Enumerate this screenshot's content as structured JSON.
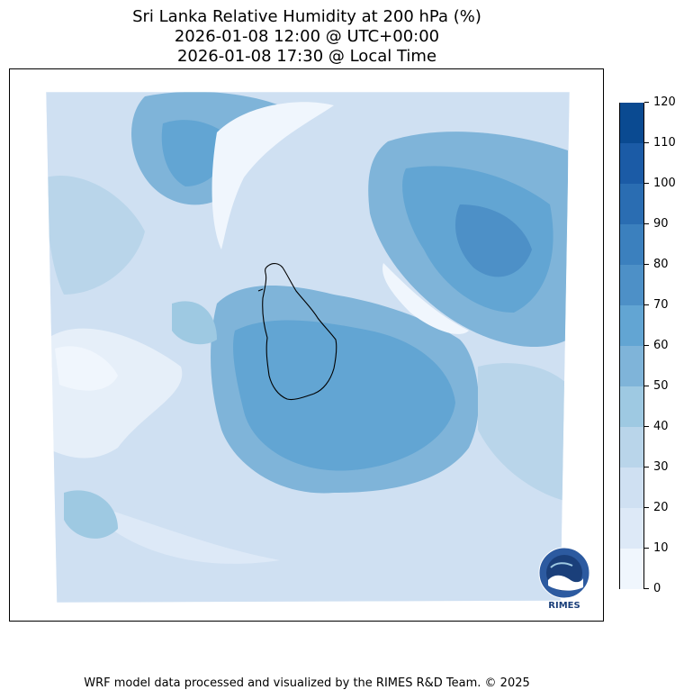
{
  "title": {
    "line1": "Sri Lanka Relative Humidity at 200 hPa (%)",
    "line2": "2026-01-08 12:00 @ UTC+00:00",
    "line3": "2026-01-08 17:30 @ Local Time"
  },
  "colorbar": {
    "ticks": [
      "0",
      "10",
      "20",
      "30",
      "40",
      "50",
      "60",
      "70",
      "80",
      "90",
      "100",
      "110",
      "120"
    ],
    "colors": [
      "#f0f6fd",
      "#dde9f7",
      "#cfe0f2",
      "#b9d5ea",
      "#9ec9e2",
      "#7fb4d9",
      "#62a5d3",
      "#4d90c7",
      "#3b80be",
      "#2a6db2",
      "#1b5ba6",
      "#0a4a91"
    ]
  },
  "logo": {
    "text": "RIMES"
  },
  "footer": "WRF model data processed and visualized by the RIMES R&D Team. © 2025"
}
